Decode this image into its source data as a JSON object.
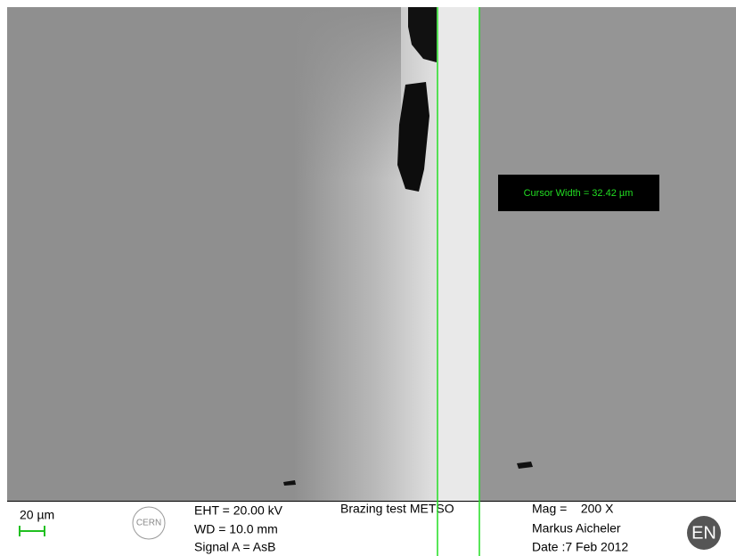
{
  "overlay": {
    "cursor_label": "Cursor Width = 32.42 µm"
  },
  "info_bar": {
    "scale_bar": "20 µm",
    "logo": "CERN",
    "parameters": [
      "EHT = 20.00 kV",
      "WD = 10.0 mm",
      "Signal A = AsB"
    ],
    "title": "Brazing test METSO",
    "magnification": "Mag =    200 X",
    "operator": "Markus Aicheler",
    "date": "Date :7 Feb 2012",
    "badge": "EN"
  }
}
